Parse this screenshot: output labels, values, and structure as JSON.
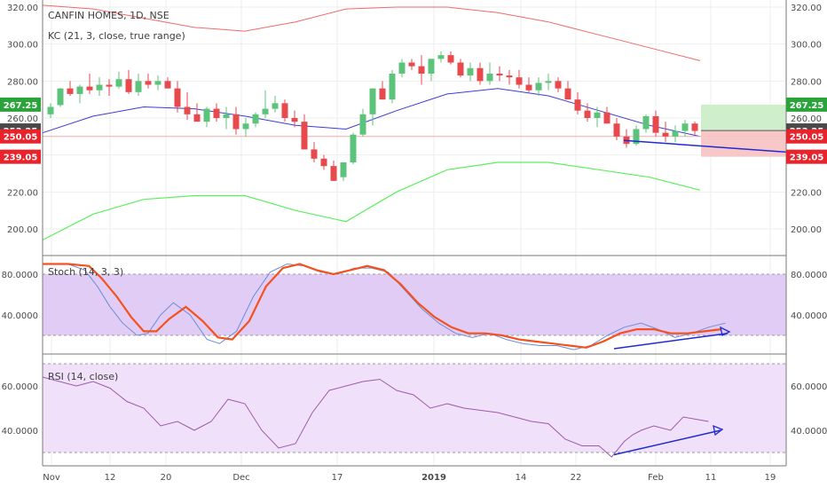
{
  "colors": {
    "up": "#5cc37a",
    "down": "#e8494d",
    "kc_upper": "#f06a6a",
    "kc_mid": "#3b3bd6",
    "kc_lower": "#5df05d",
    "stoch_k": "#6b8fd6",
    "stoch_d": "#f4511e",
    "rsi": "#9d5ca8",
    "stoch_band": "#e1ccf5",
    "rsi_band": "#f0e0fa",
    "arrow": "#1f2bd1",
    "tag_green": "#2aa33a",
    "tag_dark": "#4a4a4a",
    "tag_red": "#e8232c"
  },
  "chart_data": [
    {
      "type": "candlestick",
      "title": "CANFIN HOMES, 1D, NSE",
      "indicator": "KC (21, 3, close, true range)",
      "ylim": [
        192,
        322
      ],
      "y_ticks": [
        "320.00",
        "300.00",
        "280.00",
        "260.00",
        "240.00",
        "220.00",
        "200.00"
      ],
      "price_tags": [
        {
          "label": "267.25",
          "value": 267.25,
          "color": "green"
        },
        {
          "label": "253.25",
          "value": 253.25,
          "color": "dark"
        },
        {
          "label": "250.05",
          "value": 250.05,
          "color": "red"
        },
        {
          "label": "239.05",
          "value": 239.05,
          "color": "red"
        }
      ],
      "candles_ohlc": [
        [
          262,
          268,
          260,
          266
        ],
        [
          267,
          276,
          266,
          276
        ],
        [
          276,
          280,
          272,
          273
        ],
        [
          273,
          278,
          268,
          277
        ],
        [
          277,
          284,
          273,
          275
        ],
        [
          275,
          282,
          272,
          278
        ],
        [
          278,
          281,
          272,
          277
        ],
        [
          277,
          285,
          276,
          281
        ],
        [
          281,
          286,
          273,
          274
        ],
        [
          274,
          284,
          272,
          280
        ],
        [
          280,
          284,
          276,
          278
        ],
        [
          278,
          283,
          275,
          280
        ],
        [
          280,
          282,
          276,
          276
        ],
        [
          276,
          280,
          263,
          266
        ],
        [
          266,
          274,
          259,
          262
        ],
        [
          262,
          268,
          258,
          258
        ],
        [
          258,
          266,
          255,
          265
        ],
        [
          265,
          268,
          258,
          260
        ],
        [
          260,
          266,
          254,
          262
        ],
        [
          262,
          266,
          251,
          254
        ],
        [
          254,
          260,
          250,
          257
        ],
        [
          257,
          263,
          255,
          262
        ],
        [
          262,
          275,
          260,
          265
        ],
        [
          265,
          272,
          263,
          268
        ],
        [
          268,
          270,
          258,
          260
        ],
        [
          260,
          264,
          255,
          258
        ],
        [
          258,
          262,
          244,
          243
        ],
        [
          243,
          247,
          236,
          238
        ],
        [
          238,
          240,
          232,
          234
        ],
        [
          234,
          237,
          226,
          226
        ],
        [
          228,
          236,
          226,
          236
        ],
        [
          236,
          252,
          235,
          251
        ],
        [
          251,
          265,
          250,
          262
        ],
        [
          262,
          276,
          256,
          276
        ],
        [
          276,
          280,
          270,
          270
        ],
        [
          270,
          286,
          268,
          284
        ],
        [
          284,
          292,
          282,
          290
        ],
        [
          290,
          292,
          286,
          288
        ],
        [
          288,
          294,
          278,
          284
        ],
        [
          284,
          292,
          280,
          292
        ],
        [
          292,
          296,
          290,
          294
        ],
        [
          294,
          296,
          289,
          290
        ],
        [
          290,
          292,
          282,
          283
        ],
        [
          283,
          290,
          280,
          287
        ],
        [
          287,
          290,
          278,
          280
        ],
        [
          280,
          290,
          278,
          284
        ],
        [
          284,
          288,
          280,
          283
        ],
        [
          283,
          286,
          278,
          282
        ],
        [
          282,
          286,
          276,
          278
        ],
        [
          278,
          282,
          274,
          275
        ],
        [
          275,
          282,
          272,
          279
        ],
        [
          279,
          284,
          275,
          280
        ],
        [
          280,
          282,
          274,
          276
        ],
        [
          276,
          280,
          270,
          270
        ],
        [
          270,
          274,
          262,
          264
        ],
        [
          264,
          268,
          258,
          260
        ],
        [
          260,
          266,
          255,
          263
        ],
        [
          263,
          266,
          257,
          257
        ],
        [
          257,
          260,
          248,
          250
        ],
        [
          250,
          254,
          244,
          246
        ],
        [
          246,
          256,
          245,
          254
        ],
        [
          254,
          262,
          252,
          261
        ],
        [
          261,
          264,
          250,
          252
        ],
        [
          252,
          258,
          247,
          250
        ],
        [
          250,
          256,
          247,
          253
        ],
        [
          253,
          259,
          250,
          257
        ],
        [
          257,
          258,
          251,
          253
        ]
      ],
      "keltner": {
        "upper": [
          [
            0,
            321
          ],
          [
            60,
            319
          ],
          [
            120,
            314
          ],
          [
            180,
            309
          ],
          [
            240,
            307
          ],
          [
            300,
            312
          ],
          [
            360,
            319
          ],
          [
            420,
            320
          ],
          [
            480,
            320
          ],
          [
            540,
            317
          ],
          [
            600,
            312
          ],
          [
            660,
            305
          ],
          [
            720,
            298
          ],
          [
            780,
            291
          ]
        ],
        "middle": [
          [
            0,
            252
          ],
          [
            60,
            261
          ],
          [
            120,
            266
          ],
          [
            180,
            265
          ],
          [
            240,
            261
          ],
          [
            300,
            256
          ],
          [
            360,
            254
          ],
          [
            420,
            264
          ],
          [
            480,
            273
          ],
          [
            540,
            276
          ],
          [
            600,
            272
          ],
          [
            660,
            264
          ],
          [
            720,
            256
          ],
          [
            780,
            250
          ]
        ],
        "lower": [
          [
            0,
            194
          ],
          [
            60,
            208
          ],
          [
            120,
            216
          ],
          [
            180,
            218
          ],
          [
            240,
            218
          ],
          [
            300,
            210
          ],
          [
            360,
            204
          ],
          [
            420,
            220
          ],
          [
            480,
            232
          ],
          [
            540,
            236
          ],
          [
            600,
            236
          ],
          [
            660,
            232
          ],
          [
            720,
            228
          ],
          [
            780,
            221
          ]
        ]
      },
      "divergence_line": [
        [
          250.5,
          247.9
        ],
        [
          282.0,
          241.6
        ]
      ]
    },
    {
      "type": "line",
      "title": "Stoch (14, 3, 3)",
      "ylim": [
        0,
        100
      ],
      "band": [
        20,
        80
      ],
      "y_ticks": [
        "80.0000",
        "40.0000"
      ],
      "series": [
        {
          "values": [
            [
              0,
              90
            ],
            [
              30,
              90
            ],
            [
              50,
              84
            ],
            [
              65,
              68
            ],
            [
              80,
              48
            ],
            [
              95,
              32
            ],
            [
              112,
              20
            ],
            [
              125,
              22
            ],
            [
              140,
              40
            ],
            [
              155,
              52
            ],
            [
              175,
              40
            ],
            [
              195,
              16
            ],
            [
              210,
              12
            ],
            [
              230,
              24
            ],
            [
              250,
              58
            ],
            [
              270,
              82
            ],
            [
              290,
              90
            ],
            [
              310,
              88
            ],
            [
              330,
              82
            ],
            [
              350,
              80
            ],
            [
              370,
              86
            ],
            [
              390,
              86
            ],
            [
              410,
              82
            ],
            [
              430,
              64
            ],
            [
              450,
              46
            ],
            [
              470,
              32
            ],
            [
              490,
              22
            ],
            [
              510,
              18
            ],
            [
              530,
              22
            ],
            [
              550,
              16
            ],
            [
              570,
              12
            ],
            [
              590,
              10
            ],
            [
              610,
              10
            ],
            [
              630,
              6
            ],
            [
              650,
              10
            ],
            [
              670,
              20
            ],
            [
              690,
              28
            ],
            [
              710,
              32
            ],
            [
              730,
              26
            ],
            [
              750,
              18
            ],
            [
              770,
              22
            ],
            [
              790,
              28
            ],
            [
              810,
              32
            ]
          ]
        },
        {
          "values": [
            [
              0,
              90
            ],
            [
              30,
              90
            ],
            [
              55,
              88
            ],
            [
              70,
              76
            ],
            [
              88,
              58
            ],
            [
              105,
              38
            ],
            [
              120,
              24
            ],
            [
              135,
              24
            ],
            [
              150,
              36
            ],
            [
              170,
              48
            ],
            [
              190,
              34
            ],
            [
              208,
              18
            ],
            [
              225,
              16
            ],
            [
              245,
              34
            ],
            [
              265,
              68
            ],
            [
              285,
              86
            ],
            [
              305,
              90
            ],
            [
              325,
              84
            ],
            [
              345,
              80
            ],
            [
              365,
              84
            ],
            [
              385,
              88
            ],
            [
              405,
              84
            ],
            [
              425,
              70
            ],
            [
              445,
              52
            ],
            [
              465,
              38
            ],
            [
              485,
              28
            ],
            [
              505,
              22
            ],
            [
              525,
              22
            ],
            [
              545,
              20
            ],
            [
              565,
              16
            ],
            [
              585,
              14
            ],
            [
              605,
              12
            ],
            [
              625,
              10
            ],
            [
              645,
              8
            ],
            [
              665,
              14
            ],
            [
              685,
              22
            ],
            [
              705,
              26
            ],
            [
              725,
              26
            ],
            [
              745,
              22
            ],
            [
              765,
              22
            ],
            [
              785,
              24
            ],
            [
              805,
              26
            ]
          ]
        }
      ],
      "divergence_line": [
        [
          620,
          7
        ],
        [
          770,
          22
        ]
      ]
    },
    {
      "type": "line",
      "title": "RSI (14, close)",
      "ylim": [
        20,
        74
      ],
      "band": [
        30,
        70
      ],
      "y_ticks": [
        "60.0000",
        "40.0000"
      ],
      "series": [
        {
          "values": [
            [
              0,
              64
            ],
            [
              20,
              62
            ],
            [
              40,
              60
            ],
            [
              60,
              62
            ],
            [
              80,
              59
            ],
            [
              100,
              53
            ],
            [
              120,
              50
            ],
            [
              140,
              42
            ],
            [
              160,
              44
            ],
            [
              180,
              40
            ],
            [
              200,
              44
            ],
            [
              220,
              54
            ],
            [
              240,
              52
            ],
            [
              260,
              40
            ],
            [
              280,
              32
            ],
            [
              300,
              34
            ],
            [
              320,
              48
            ],
            [
              340,
              58
            ],
            [
              360,
              60
            ],
            [
              380,
              62
            ],
            [
              400,
              63
            ],
            [
              420,
              58
            ],
            [
              440,
              56
            ],
            [
              460,
              50
            ],
            [
              480,
              52
            ],
            [
              500,
              50
            ],
            [
              520,
              49
            ],
            [
              540,
              48
            ],
            [
              560,
              46
            ],
            [
              580,
              44
            ],
            [
              600,
              43
            ],
            [
              620,
              36
            ],
            [
              640,
              33
            ],
            [
              660,
              33
            ],
            [
              675,
              28
            ],
            [
              690,
              35
            ],
            [
              700,
              38
            ],
            [
              710,
              40
            ],
            [
              725,
              42
            ],
            [
              745,
              40
            ],
            [
              760,
              46
            ],
            [
              775,
              45
            ],
            [
              790,
              44
            ]
          ]
        }
      ],
      "divergence_line": [
        [
          620,
          29
        ],
        [
          770,
          40
        ]
      ]
    }
  ],
  "x_axis": {
    "ticks": [
      {
        "label": "Nov",
        "bold": false
      },
      {
        "label": "12",
        "bold": false
      },
      {
        "label": "20",
        "bold": false
      },
      {
        "label": "Dec",
        "bold": false
      },
      {
        "label": "17",
        "bold": false
      },
      {
        "label": "2019",
        "bold": true
      },
      {
        "label": "14",
        "bold": false
      },
      {
        "label": "22",
        "bold": false
      },
      {
        "label": "Feb",
        "bold": false
      },
      {
        "label": "11",
        "bold": false
      },
      {
        "label": "19",
        "bold": false
      }
    ]
  }
}
